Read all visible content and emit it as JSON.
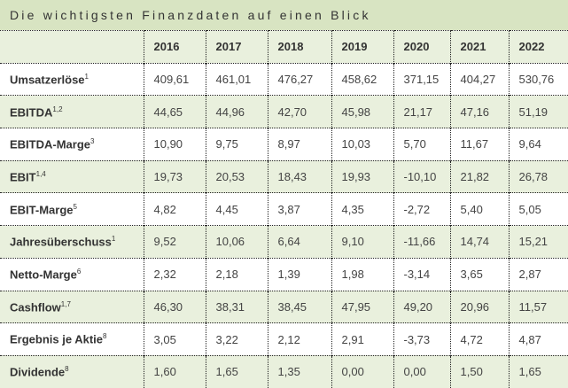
{
  "title": "Die wichtigsten Finanzdaten auf einen Blick",
  "years": [
    "2016",
    "2017",
    "2018",
    "2019",
    "2020",
    "2021",
    "2022"
  ],
  "rows": [
    {
      "label": "Umsatzerlöse",
      "note": "1",
      "values": [
        "409,61",
        "461,01",
        "476,27",
        "458,62",
        "371,15",
        "404,27",
        "530,76"
      ]
    },
    {
      "label": "EBITDA",
      "note": "1,2",
      "values": [
        "44,65",
        "44,96",
        "42,70",
        "45,98",
        "21,17",
        "47,16",
        "51,19"
      ]
    },
    {
      "label": "EBITDA-Marge",
      "note": "3",
      "values": [
        "10,90",
        "9,75",
        "8,97",
        "10,03",
        "5,70",
        "11,67",
        "9,64"
      ]
    },
    {
      "label": "EBIT",
      "note": "1,4",
      "values": [
        "19,73",
        "20,53",
        "18,43",
        "19,93",
        "-10,10",
        "21,82",
        "26,78"
      ]
    },
    {
      "label": "EBIT-Marge",
      "note": "5",
      "values": [
        "4,82",
        "4,45",
        "3,87",
        "4,35",
        "-2,72",
        "5,40",
        "5,05"
      ]
    },
    {
      "label": "Jahresüberschuss",
      "note": "1",
      "values": [
        "9,52",
        "10,06",
        "6,64",
        "9,10",
        "-11,66",
        "14,74",
        "15,21"
      ]
    },
    {
      "label": "Netto-Marge",
      "note": "6",
      "values": [
        "2,32",
        "2,18",
        "1,39",
        "1,98",
        "-3,14",
        "3,65",
        "2,87"
      ]
    },
    {
      "label": "Cashflow",
      "note": "1,7",
      "values": [
        "46,30",
        "38,31",
        "38,45",
        "47,95",
        "49,20",
        "20,96",
        "11,57"
      ]
    },
    {
      "label": "Ergebnis je Aktie",
      "note": "8",
      "values": [
        "3,05",
        "3,22",
        "2,12",
        "2,91",
        "-3,73",
        "4,72",
        "4,87"
      ]
    },
    {
      "label": "Dividende",
      "note": "8",
      "values": [
        "1,60",
        "1,65",
        "1,35",
        "0,00",
        "0,00",
        "1,50",
        "1,65"
      ]
    }
  ]
}
